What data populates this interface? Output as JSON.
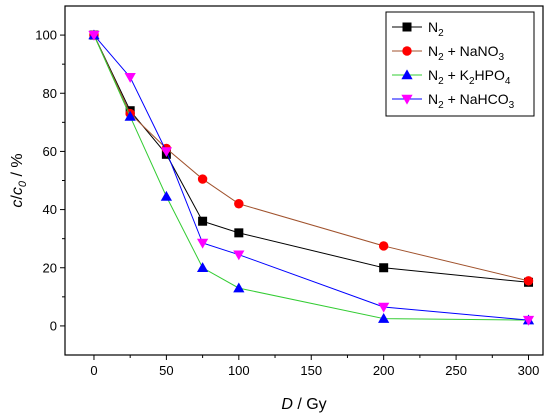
{
  "chart_data": {
    "type": "line",
    "xlabel": {
      "var": "D",
      "unit": " / Gy"
    },
    "ylabel": {
      "var": "c",
      "slash": "/",
      "var2": "c",
      "sub": "0",
      "unit": " / %"
    },
    "xlim": [
      -20,
      310
    ],
    "ylim": [
      -10,
      110
    ],
    "xticks": [
      "0",
      "50",
      "100",
      "150",
      "200",
      "250",
      "300"
    ],
    "yticks": [
      "0",
      "20",
      "40",
      "60",
      "80",
      "100"
    ],
    "grid": false,
    "legend_position": "top-right",
    "series": [
      {
        "name": "N2",
        "legend": {
          "parts": [
            [
              "N",
              ""
            ],
            [
              "2",
              "sub"
            ]
          ]
        },
        "marker": "square",
        "color": "#000000",
        "line_color": "#000000",
        "x": [
          0,
          25,
          50,
          75,
          100,
          200,
          300
        ],
        "y": [
          100,
          74,
          59,
          36,
          32,
          20,
          15
        ]
      },
      {
        "name": "N2 + NaNO3",
        "legend": {
          "parts": [
            [
              "N",
              ""
            ],
            [
              "2",
              "sub"
            ],
            [
              " + NaNO",
              ""
            ],
            [
              "3",
              "sub"
            ]
          ]
        },
        "marker": "circle",
        "color": "#ff0000",
        "line_color": "#a0522d",
        "x": [
          0,
          25,
          50,
          75,
          100,
          200,
          300
        ],
        "y": [
          100,
          73,
          61,
          50.5,
          42,
          27.5,
          15.5
        ]
      },
      {
        "name": "N2 + K2HPO4",
        "legend": {
          "parts": [
            [
              "N",
              ""
            ],
            [
              "2",
              "sub"
            ],
            [
              " + K",
              ""
            ],
            [
              "2",
              "sub"
            ],
            [
              "HPO",
              ""
            ],
            [
              "4",
              "sub"
            ]
          ]
        },
        "marker": "triangle-up",
        "color": "#0000ff",
        "line_color": "#33cc33",
        "x": [
          0,
          25,
          50,
          75,
          100,
          200,
          300
        ],
        "y": [
          100,
          72,
          44.5,
          20,
          13,
          2.5,
          2
        ]
      },
      {
        "name": "N2 + NaHCO3",
        "legend": {
          "parts": [
            [
              "N",
              ""
            ],
            [
              "2",
              "sub"
            ],
            [
              " + NaHCO",
              ""
            ],
            [
              "3",
              "sub"
            ]
          ]
        },
        "marker": "triangle-down",
        "color": "#ff00ff",
        "line_color": "#0000ff",
        "x": [
          0,
          25,
          50,
          75,
          100,
          200,
          300
        ],
        "y": [
          100,
          85.5,
          60,
          28.5,
          24.5,
          6.5,
          2
        ]
      }
    ]
  }
}
